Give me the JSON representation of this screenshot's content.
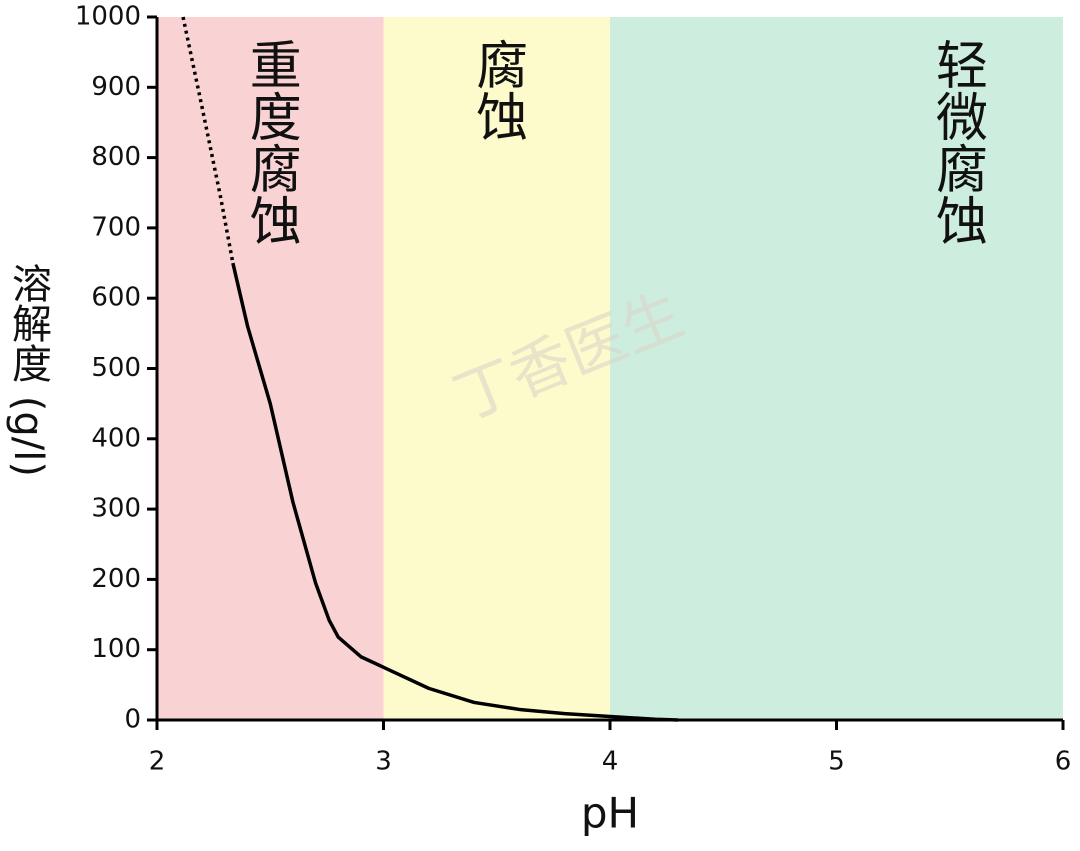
{
  "chart_data": {
    "type": "line",
    "ylabel": "溶解度 (g/l)",
    "xlabel": "pH",
    "xlim": [
      2,
      6
    ],
    "xticks": [
      2,
      3,
      4,
      5,
      6
    ],
    "ylim": [
      0,
      1000
    ],
    "yticks": [
      0,
      100,
      200,
      300,
      400,
      500,
      600,
      700,
      800,
      900,
      1000
    ],
    "regions": [
      {
        "from": 2,
        "to": 3,
        "label": "重度腐蚀",
        "color": "#f9d3d4"
      },
      {
        "from": 3,
        "to": 4,
        "label": "腐蚀",
        "color": "#fdfbcb"
      },
      {
        "from": 4,
        "to": 6,
        "label": "轻微腐蚀",
        "color": "#cdeddf"
      }
    ],
    "series": [
      {
        "style": "dotted",
        "color": "#000000",
        "x": [
          2.115,
          2.2,
          2.28,
          2.335
        ],
        "values": [
          1000,
          870,
          745,
          650
        ]
      },
      {
        "style": "solid",
        "color": "#000000",
        "x": [
          2.335,
          2.4,
          2.5,
          2.6,
          2.7,
          2.76,
          2.8,
          2.9,
          3.0,
          3.2,
          3.4,
          3.6,
          3.8,
          4.0,
          4.2,
          4.3
        ],
        "values": [
          650,
          560,
          450,
          310,
          195,
          142,
          118,
          90,
          75,
          45,
          25,
          15,
          9,
          5,
          1,
          0
        ]
      }
    ],
    "watermark": "丁香医生"
  }
}
